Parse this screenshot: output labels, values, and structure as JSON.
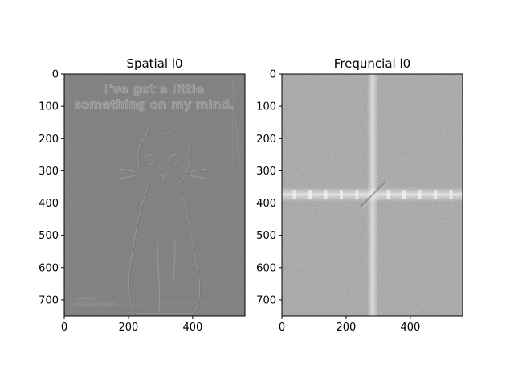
{
  "figure": {
    "background": "#ffffff"
  },
  "chart_data": [
    {
      "type": "heatmap",
      "title": "Spatial l0",
      "colormap": "gray",
      "image_description": "embossed / high-pass filtered cat photo",
      "xlim": [
        0,
        563
      ],
      "ylim": [
        750,
        0
      ],
      "x_ticks": [
        0,
        200,
        400
      ],
      "y_ticks": [
        0,
        100,
        200,
        300,
        400,
        500,
        600,
        700
      ],
      "embedded_text": {
        "line1": "I've got a little",
        "line2": "something on my mind.",
        "watermark_line1": "I-CAN-HAS",
        "watermark_line2": "CHEEZBURGER? 2007"
      },
      "base_color": "#808080"
    },
    {
      "type": "heatmap",
      "title": "Frequncial l0",
      "colormap": "gray",
      "image_description": "2D Fourier magnitude spectrum with bright cross at center",
      "xlim": [
        0,
        563
      ],
      "ylim": [
        750,
        0
      ],
      "x_ticks": [
        0,
        200,
        400
      ],
      "y_ticks": [
        0,
        100,
        200,
        300,
        400,
        500,
        600,
        700
      ],
      "base_color": "#a6a6a6"
    }
  ]
}
